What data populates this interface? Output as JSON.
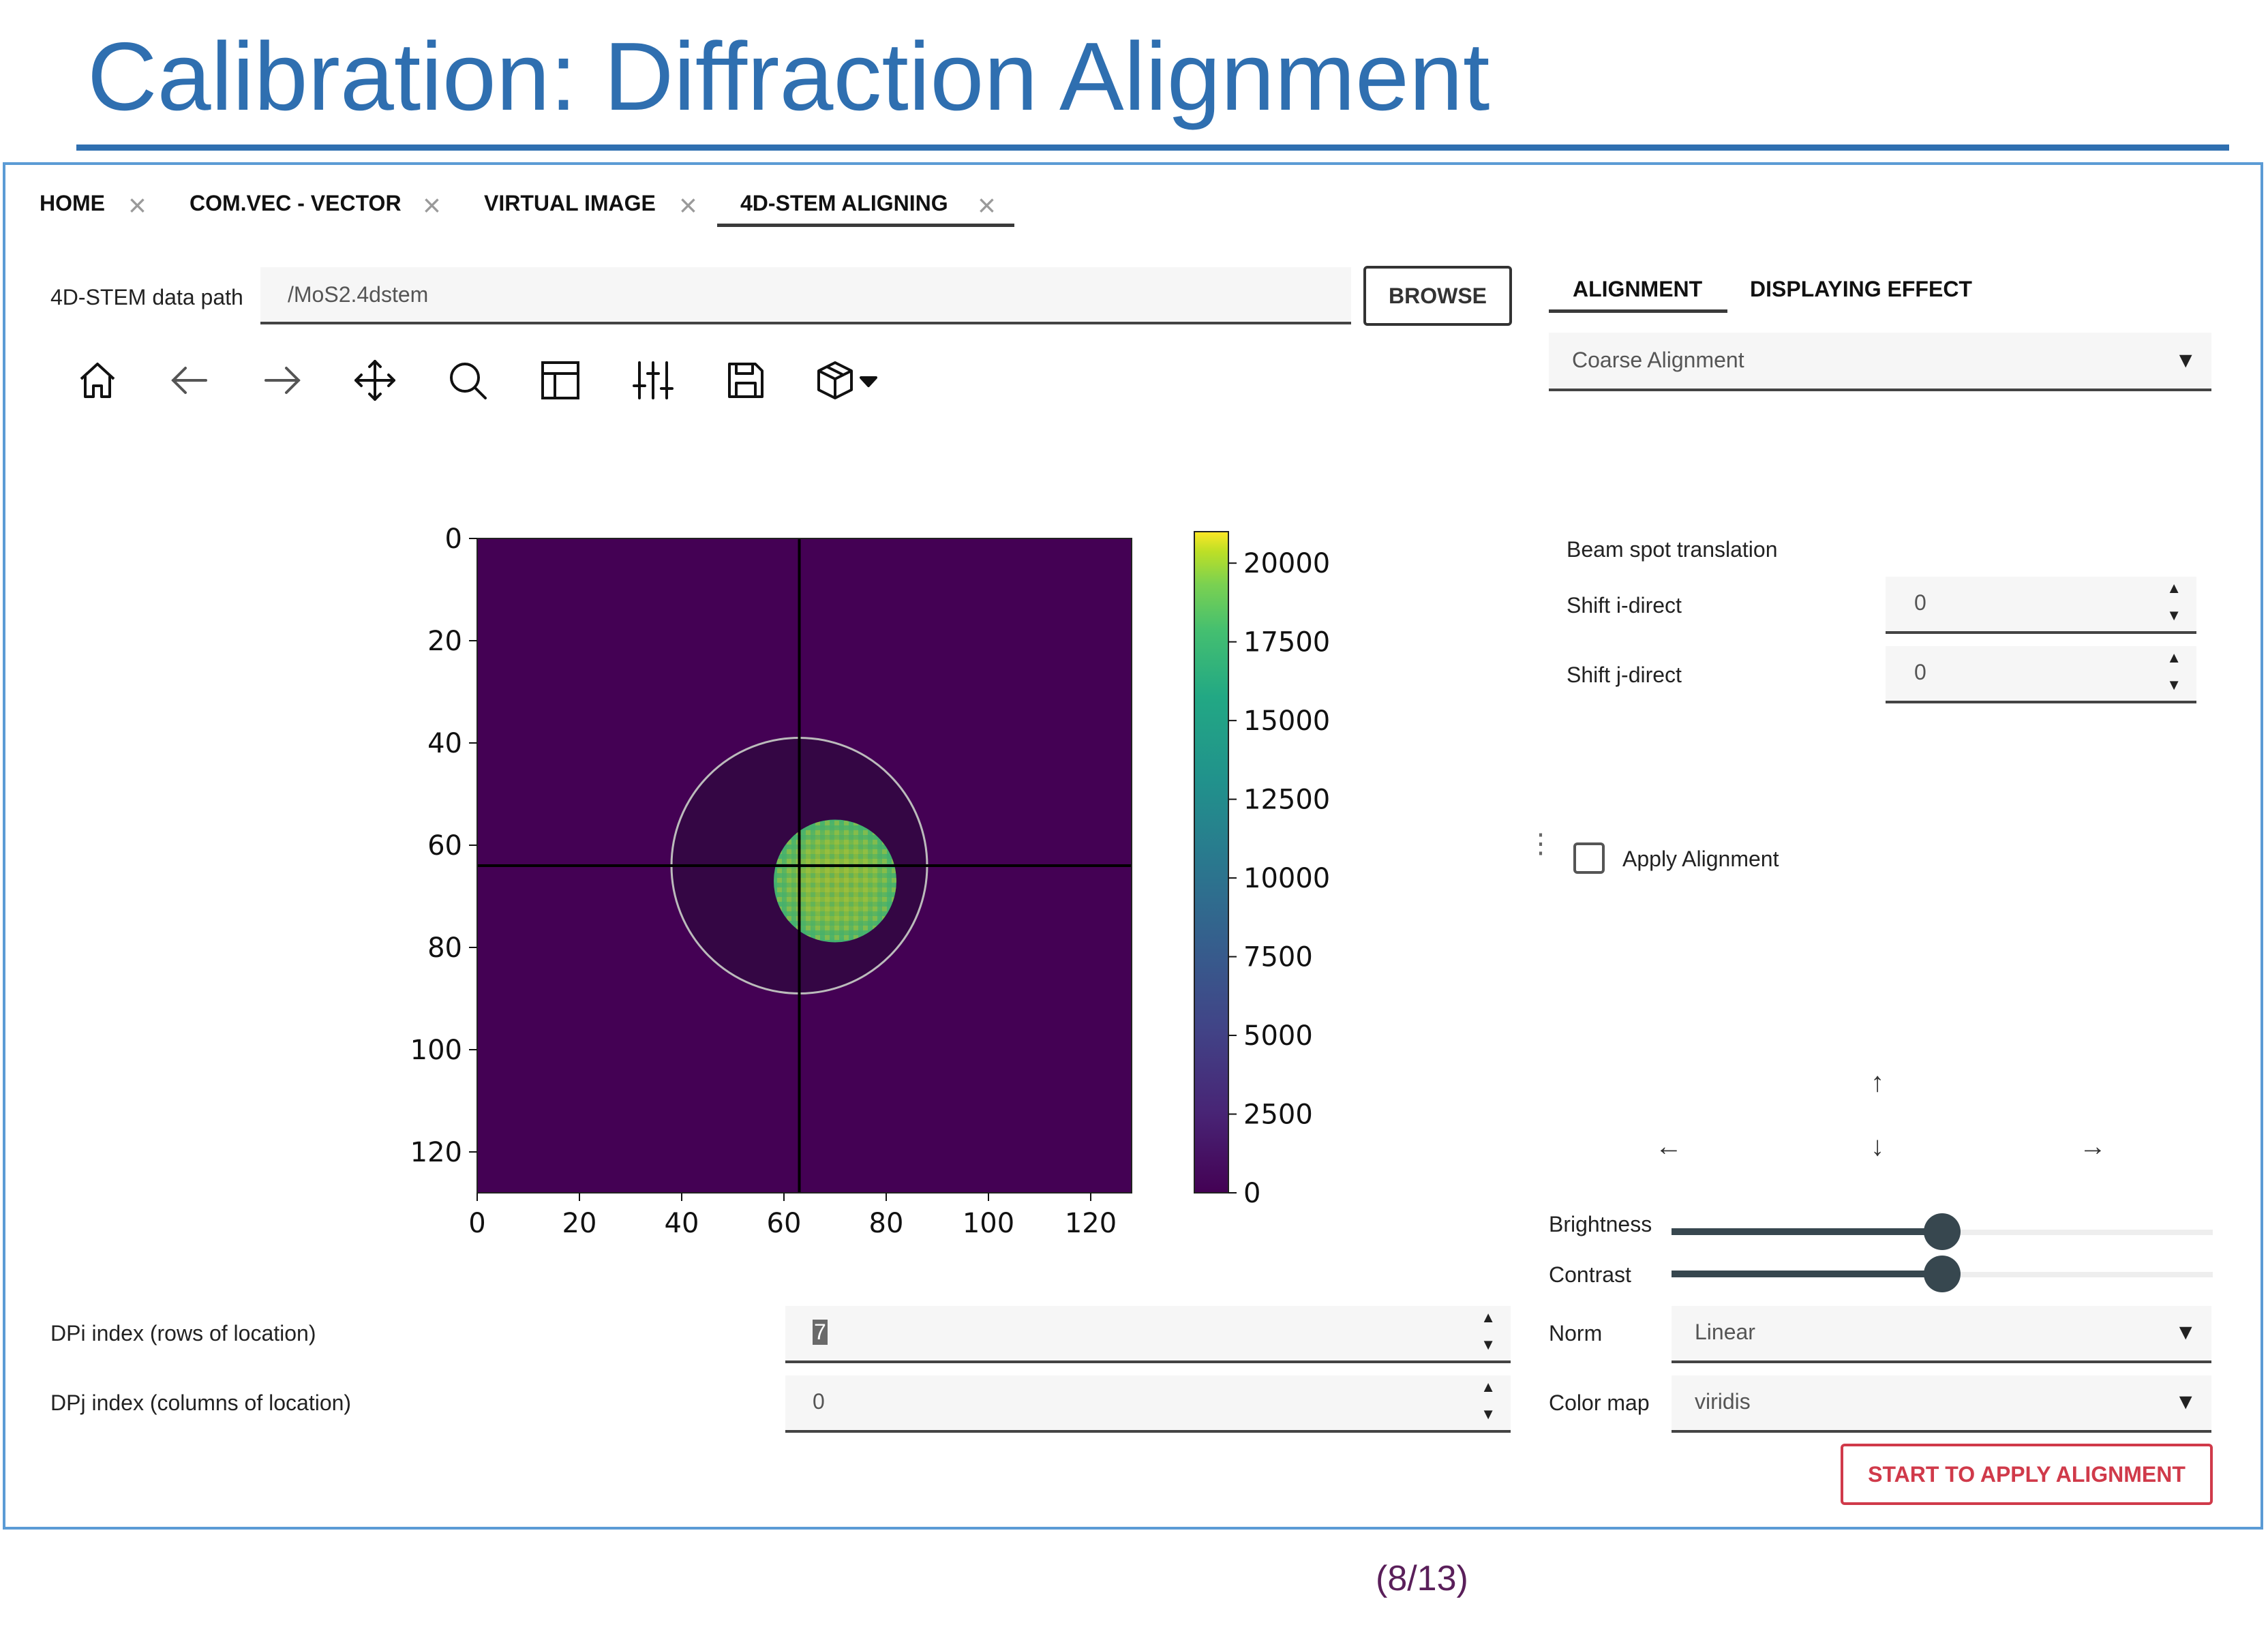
{
  "slide": {
    "title": "Calibration: Diffraction Alignment",
    "page_number": "(8/13)"
  },
  "tabs": [
    {
      "label": "HOME"
    },
    {
      "label": "COM.VEC - VECTOR"
    },
    {
      "label": "VIRTUAL IMAGE"
    },
    {
      "label": "4D-STEM ALIGNING",
      "active": true
    }
  ],
  "data_path": {
    "label": "4D-STEM data path",
    "value": "/MoS2.4dstem",
    "browse_label": "BROWSE"
  },
  "toolbar": {
    "icons": [
      "home-icon",
      "back-arrow-icon",
      "forward-arrow-icon",
      "pan-move-icon",
      "zoom-icon",
      "subplots-icon",
      "adjust-sliders-icon",
      "save-icon",
      "3d-box-icon"
    ]
  },
  "right_tabs": [
    {
      "label": "ALIGNMENT",
      "active": true
    },
    {
      "label": "DISPLAYING EFFECT"
    }
  ],
  "alignment": {
    "mode_value": "Coarse Alignment",
    "section_label": "Beam spot translation",
    "shift_i_label": "Shift i-direct",
    "shift_i_value": "0",
    "shift_j_label": "Shift j-direct",
    "shift_j_value": "0",
    "apply_label": "Apply Alignment",
    "apply_checked": false,
    "arrows": {
      "up": "↑",
      "down": "↓",
      "left": "←",
      "right": "→"
    }
  },
  "display": {
    "brightness_label": "Brightness",
    "brightness_level": 0.5,
    "contrast_label": "Contrast",
    "contrast_level": 0.5,
    "norm_label": "Norm",
    "norm_value": "Linear",
    "colormap_label": "Color map",
    "colormap_value": "viridis",
    "start_label": "START TO APPLY ALIGNMENT"
  },
  "index": {
    "dpi_label": "DPi index (rows of location)",
    "dpi_value": "7",
    "dpj_label": "DPj index (columns of location)",
    "dpj_value": "0"
  },
  "colors": {
    "title_blue": "#2f6fb0",
    "frame_blue": "#5b9bd5",
    "accent_red": "#d03a4a",
    "viridis_dark": "#440154",
    "page_number": "#5a1f5a"
  },
  "chart_data": {
    "type": "heatmap",
    "title": "",
    "colormap": "viridis",
    "x_ticks": [
      "0",
      "20",
      "40",
      "60",
      "80",
      "100",
      "120"
    ],
    "y_ticks": [
      "0",
      "20",
      "40",
      "60",
      "80",
      "100",
      "120"
    ],
    "xlim": [
      0,
      128
    ],
    "ylim": [
      128,
      0
    ],
    "crosshair": {
      "x": 63,
      "y": 64
    },
    "circle": {
      "cx": 63,
      "cy": 64,
      "r": 25
    },
    "bright_disk": {
      "cx": 70,
      "cy": 67,
      "r": 12,
      "value": 15000
    },
    "background_value": 0,
    "colorbar": {
      "range": [
        0,
        21000
      ],
      "ticks": [
        "0",
        "2500",
        "5000",
        "7500",
        "10000",
        "12500",
        "15000",
        "17500",
        "20000"
      ]
    }
  }
}
